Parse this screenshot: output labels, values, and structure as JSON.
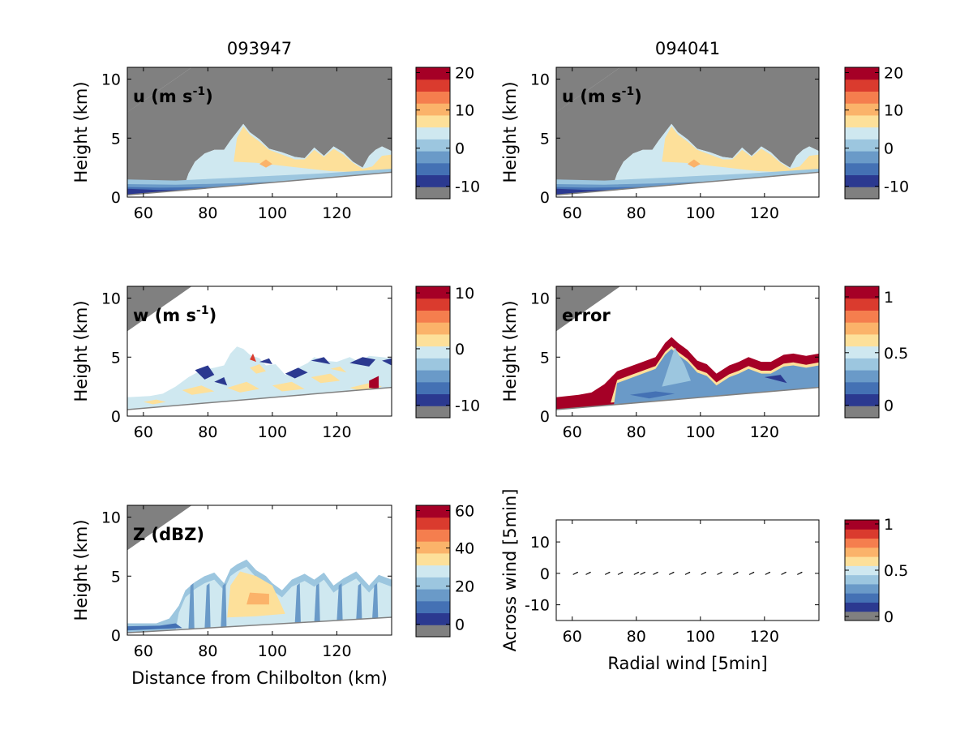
{
  "colors": {
    "mask": "#808080",
    "scale": [
      "#2b3990",
      "#4471b4",
      "#6a9ac8",
      "#9cc6df",
      "#cfe8f0",
      "#fde09a",
      "#fbb36a",
      "#f57e4e",
      "#da3b2e",
      "#a50026"
    ],
    "snow": "#cfe8f0",
    "axis": "#000000"
  },
  "chart_data": [
    {
      "id": "u_093947",
      "type": "heatmap",
      "title": "093947",
      "label_main": "u (m s",
      "label_sup": "-1",
      "label_tail": ")",
      "ylabel": "Height (km)",
      "xlabel": "",
      "xlim": [
        55,
        137
      ],
      "ylim": [
        0,
        11
      ],
      "xticks": [
        "60",
        "80",
        "100",
        "120"
      ],
      "yticks": [
        "0",
        "5",
        "10"
      ],
      "colorbar": {
        "ticks": [
          "20",
          "10",
          "0",
          "-10"
        ]
      },
      "field": "u"
    },
    {
      "id": "u_094041",
      "type": "heatmap",
      "title": "094041",
      "label_main": "u (m s",
      "label_sup": "-1",
      "label_tail": ")",
      "ylabel": "Height (km)",
      "xlabel": "",
      "xlim": [
        55,
        137
      ],
      "ylim": [
        0,
        11
      ],
      "xticks": [
        "60",
        "80",
        "100",
        "120"
      ],
      "yticks": [
        "0",
        "5",
        "10"
      ],
      "colorbar": {
        "ticks": [
          "20",
          "10",
          "0",
          "-10"
        ]
      },
      "field": "u"
    },
    {
      "id": "w_093947",
      "type": "heatmap",
      "title": "",
      "label_main": "w (m s",
      "label_sup": "-1",
      "label_tail": ")",
      "ylabel": "Height (km)",
      "xlabel": "",
      "xlim": [
        55,
        137
      ],
      "ylim": [
        0,
        11
      ],
      "xticks": [
        "60",
        "80",
        "100",
        "120"
      ],
      "yticks": [
        "0",
        "5",
        "10"
      ],
      "colorbar": {
        "ticks": [
          "10",
          "0",
          "-10"
        ]
      },
      "field": "w"
    },
    {
      "id": "error_094041",
      "type": "heatmap",
      "title": "",
      "label_main": "error",
      "label_sup": "",
      "label_tail": "",
      "ylabel": "Height (km)",
      "xlabel": "",
      "xlim": [
        55,
        137
      ],
      "ylim": [
        0,
        11
      ],
      "xticks": [
        "60",
        "80",
        "100",
        "120"
      ],
      "yticks": [
        "0",
        "5",
        "10"
      ],
      "colorbar": {
        "ticks": [
          "1",
          "0.5",
          "0"
        ]
      },
      "field": "error"
    },
    {
      "id": "Z_093947",
      "type": "heatmap",
      "title": "",
      "label_main": "Z (dBZ)",
      "label_sup": "",
      "label_tail": "",
      "ylabel": "Height (km)",
      "xlabel": "Distance from Chilbolton (km)",
      "xlim": [
        55,
        137
      ],
      "ylim": [
        0,
        11
      ],
      "xticks": [
        "60",
        "80",
        "100",
        "120"
      ],
      "yticks": [
        "0",
        "5",
        "10"
      ],
      "colorbar": {
        "ticks": [
          "60",
          "40",
          "20",
          "0"
        ]
      },
      "field": "Z"
    },
    {
      "id": "winds",
      "type": "scatter",
      "title": "",
      "label_main": "",
      "label_sup": "",
      "label_tail": "",
      "ylabel": "Across wind [5min]",
      "xlabel": "Radial wind [5min]",
      "xlim": [
        55,
        137
      ],
      "ylim": [
        -15,
        17
      ],
      "xticks": [
        "60",
        "80",
        "100",
        "120"
      ],
      "yticks": [
        "10",
        "0",
        "-10"
      ],
      "colorbar": {
        "ticks": [
          "1",
          "0.5",
          "0"
        ]
      },
      "field": "arrows",
      "arrow_x": [
        61,
        65,
        71,
        75,
        80,
        82,
        86,
        91,
        96,
        101,
        106,
        111,
        116,
        121,
        126,
        131
      ],
      "arrow_y": [
        0,
        0,
        0,
        0,
        0,
        0,
        0,
        0,
        0,
        0,
        0,
        0,
        0,
        0,
        0,
        0
      ]
    }
  ]
}
